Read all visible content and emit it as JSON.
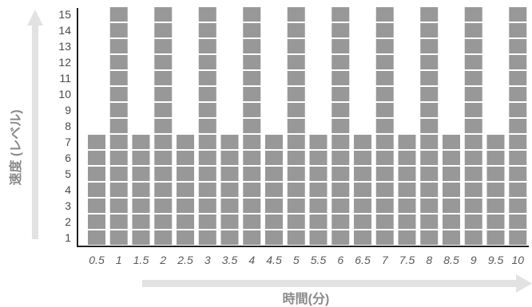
{
  "chart_data": {
    "type": "bar",
    "style": "stacked-block",
    "categories": [
      "0.5",
      "1",
      "1.5",
      "2",
      "2.5",
      "3",
      "3.5",
      "4",
      "4.5",
      "5",
      "5.5",
      "6",
      "6.5",
      "7",
      "7.5",
      "8",
      "8.5",
      "9",
      "9.5",
      "10"
    ],
    "values": [
      7,
      15,
      7,
      15,
      7,
      15,
      7,
      15,
      7,
      15,
      7,
      15,
      7,
      15,
      7,
      15,
      7,
      15,
      7,
      15
    ],
    "title": "",
    "xlabel": "時間(分)",
    "ylabel": "速度 (レベル)",
    "yticks": [
      "1",
      "2",
      "3",
      "4",
      "5",
      "6",
      "7",
      "8",
      "9",
      "10",
      "11",
      "12",
      "13",
      "14",
      "15"
    ],
    "ylim": [
      0,
      15
    ],
    "grid": false,
    "bar_color": "#989898",
    "axis_arrow_color": "#e2e2e2",
    "axis_line_color": "#222222"
  }
}
